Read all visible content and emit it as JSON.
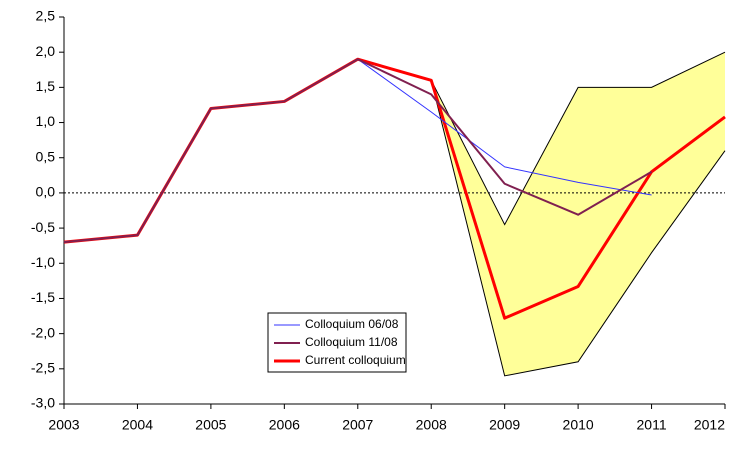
{
  "chart_data": {
    "type": "line",
    "categories": [
      "2003",
      "2004",
      "2005",
      "2006",
      "2007",
      "2008",
      "2009",
      "2010",
      "2011",
      "2012"
    ],
    "band": {
      "color": "#ffff99",
      "upper": [
        null,
        null,
        null,
        null,
        null,
        1.6,
        -0.45,
        1.5,
        1.5,
        2.0
      ],
      "lower": [
        null,
        null,
        null,
        null,
        null,
        1.6,
        -2.6,
        -2.4,
        -0.85,
        0.6
      ]
    },
    "series": [
      {
        "name": "Colloquium 06/08",
        "color": "#3333ff",
        "width": 1,
        "values": [
          -0.7,
          -0.6,
          1.2,
          1.3,
          1.9,
          1.15,
          0.37,
          0.15,
          -0.03,
          null
        ]
      },
      {
        "name": "Colloquium 11/08",
        "color": "#802050",
        "width": 2,
        "values": [
          -0.7,
          -0.6,
          1.2,
          1.3,
          1.9,
          1.4,
          0.13,
          -0.31,
          0.3,
          null
        ]
      },
      {
        "name": "Current colloquium",
        "color": "#ff0000",
        "width": 3,
        "values": [
          -0.7,
          -0.6,
          1.2,
          1.3,
          1.9,
          1.6,
          -1.78,
          -1.33,
          0.3,
          1.08
        ]
      }
    ],
    "ylim": [
      -3.0,
      2.5
    ],
    "yticks": [
      {
        "value": -3.0,
        "label": "-3,0"
      },
      {
        "value": -2.5,
        "label": "-2,5"
      },
      {
        "value": -2.0,
        "label": "-2,0"
      },
      {
        "value": -1.5,
        "label": "-1,5"
      },
      {
        "value": -1.0,
        "label": "-1,0"
      },
      {
        "value": -0.5,
        "label": "-0,5"
      },
      {
        "value": 0.0,
        "label": "0,0"
      },
      {
        "value": 0.5,
        "label": "0,5"
      },
      {
        "value": 1.0,
        "label": "1,0"
      },
      {
        "value": 1.5,
        "label": "1,5"
      },
      {
        "value": 2.0,
        "label": "2,0"
      },
      {
        "value": 2.5,
        "label": "2,5"
      }
    ],
    "zero_line": true
  }
}
